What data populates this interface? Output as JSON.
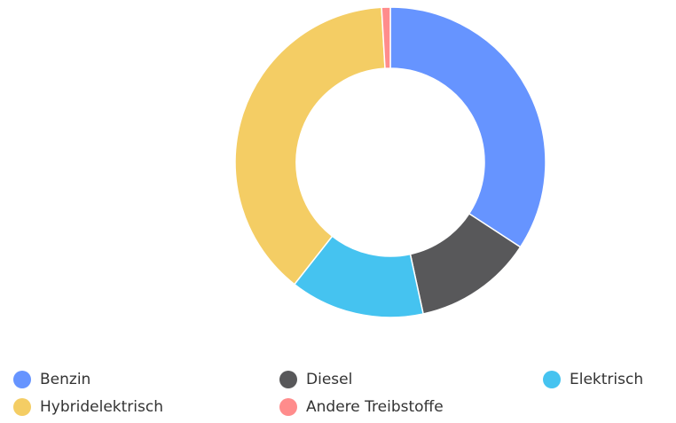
{
  "chart_data": {
    "type": "donut",
    "categories": [
      "Benzin",
      "Diesel",
      "Elektrisch",
      "Hybridelektrisch",
      "Andere Treibstoffe"
    ],
    "values": [
      34.2,
      12.4,
      14,
      38.5,
      0.9
    ],
    "colors": [
      "#6694ff",
      "#58585a",
      "#45c3f0",
      "#f4cd64",
      "#ff8c8c"
    ]
  }
}
